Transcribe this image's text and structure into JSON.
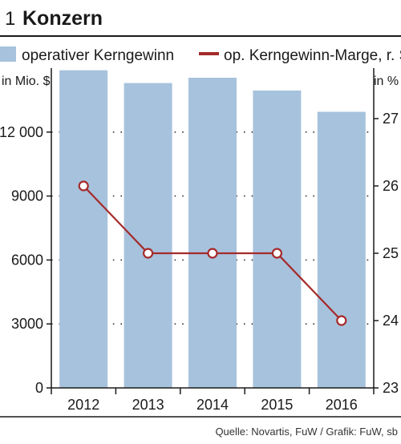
{
  "header": {
    "number": "1",
    "title": "Konzern"
  },
  "legend": {
    "bar_label": "operativer Kerngewinn",
    "line_label": "op. Kerngewinn-Marge, r. S."
  },
  "source": "Quelle: Novartis, FuW / Grafik: FuW, sb",
  "colors": {
    "bar": "#a7c2dc",
    "line": "#a52a2a",
    "axis": "#1a1a1a"
  },
  "chart_data": {
    "type": "bar",
    "categories": [
      "2012",
      "2013",
      "2014",
      "2015",
      "2016"
    ],
    "series": [
      {
        "name": "operativer Kerngewinn",
        "type": "bar",
        "axis": "left",
        "values": [
          14900,
          14300,
          14550,
          13950,
          12950
        ]
      },
      {
        "name": "op. Kerngewinn-Marge, r. S.",
        "type": "line",
        "axis": "right",
        "values": [
          26,
          25,
          25,
          25,
          24
        ]
      }
    ],
    "y_left": {
      "label": "in Mio. $",
      "ylim": [
        0,
        15000
      ],
      "ticks": [
        0,
        3000,
        6000,
        9000,
        12000
      ],
      "tick_labels": [
        "0",
        "3000",
        "6000",
        "9000",
        "12 000"
      ]
    },
    "y_right": {
      "label": "in %",
      "ylim": [
        23,
        27.75
      ],
      "ticks": [
        23,
        24,
        25,
        26,
        27
      ],
      "tick_labels": [
        "23",
        "24",
        "25",
        "26",
        "27"
      ]
    },
    "grid": "dotted horizontal"
  }
}
